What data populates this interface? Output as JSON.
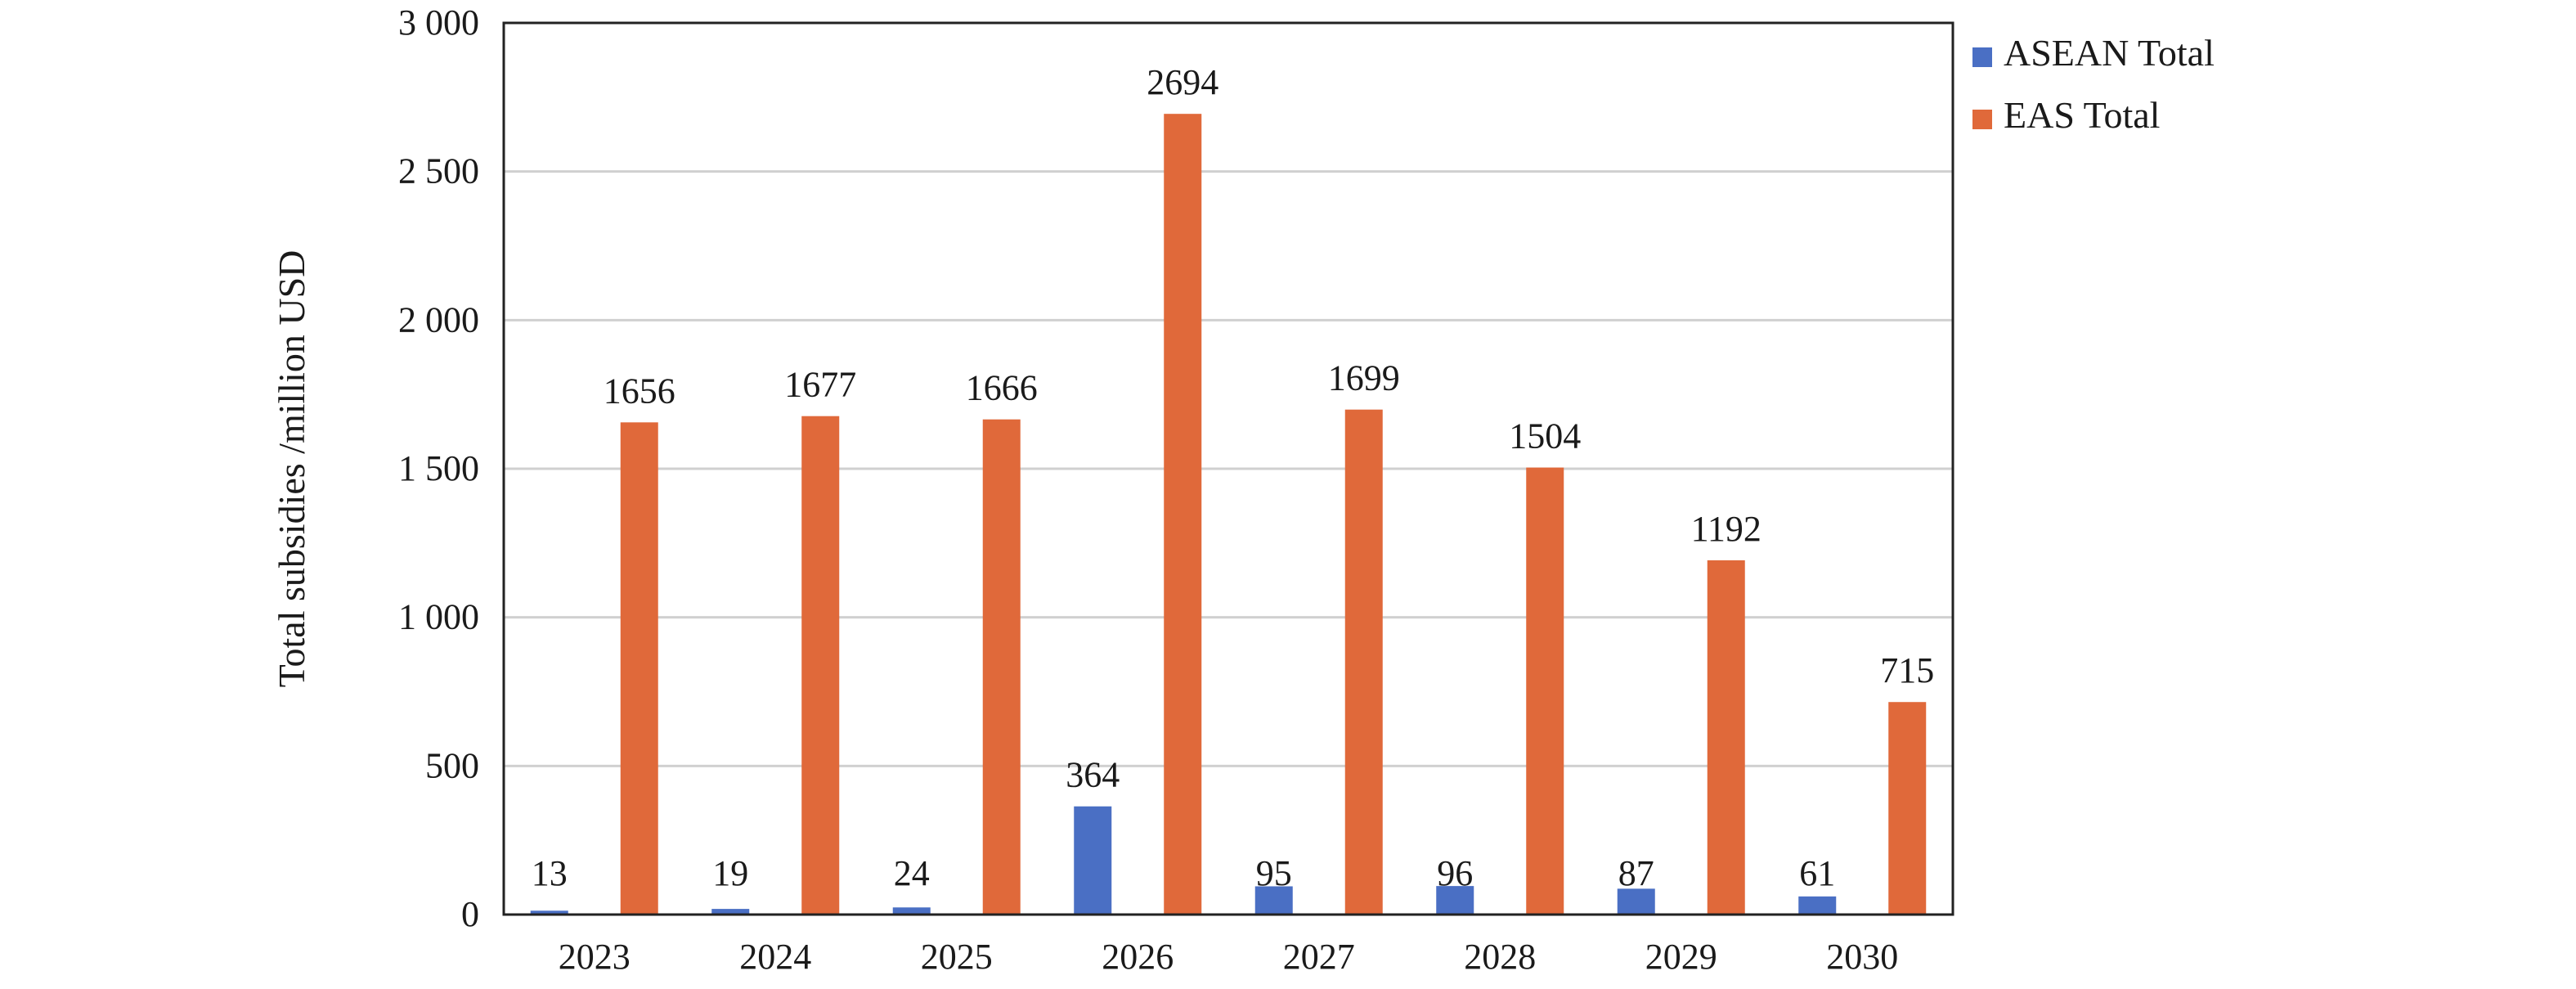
{
  "chart_data": {
    "type": "bar",
    "categories": [
      "2023",
      "2024",
      "2025",
      "2026",
      "2027",
      "2028",
      "2029",
      "2030"
    ],
    "series": [
      {
        "name": "ASEAN Total",
        "color": "#4a6fc4",
        "values": [
          13,
          19,
          24,
          364,
          95,
          96,
          87,
          61
        ]
      },
      {
        "name": "EAS Total",
        "color": "#e0693a",
        "values": [
          1656,
          1677,
          1666,
          2694,
          1699,
          1504,
          1192,
          715
        ]
      }
    ],
    "data_labels": {
      "ASEAN Total": [
        "13",
        "19",
        "24",
        "364",
        "95",
        "96",
        "87",
        "61"
      ],
      "EAS Total": [
        "1656",
        "1677",
        "1666",
        "2694",
        "1699",
        "1504",
        "1192",
        "715"
      ]
    },
    "ylabel": "Total subsidies /million USD",
    "xlabel": "",
    "ylim": [
      0,
      3000
    ],
    "y_ticks": [
      0,
      500,
      1000,
      1500,
      2000,
      2500,
      3000
    ],
    "y_tick_labels": [
      "0",
      "500",
      "1 000",
      "1 500",
      "2 000",
      "2 500",
      "3 000"
    ],
    "grid": true,
    "legend_position": "top-right"
  }
}
